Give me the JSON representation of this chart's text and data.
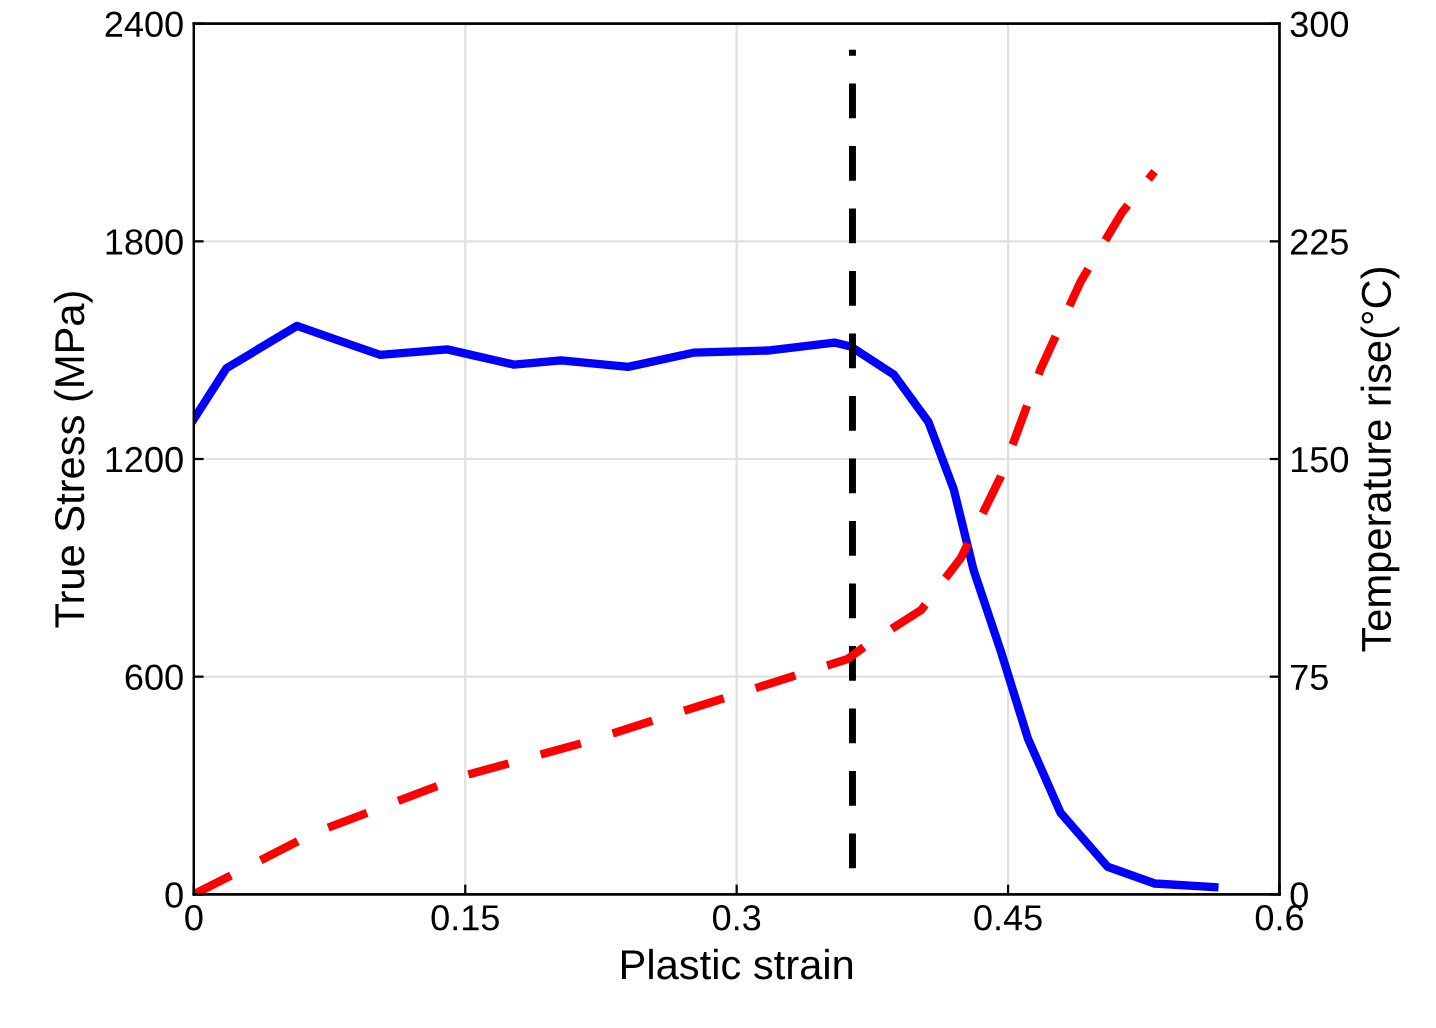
{
  "chart_data": {
    "type": "line",
    "xlabel": "Plastic strain",
    "ylabel": "True Stress (MPa)",
    "y2label": "Temperature rise(°C)",
    "xlim": [
      0,
      0.6
    ],
    "xticks": [
      0,
      0.15,
      0.3,
      0.45,
      0.6
    ],
    "ylim": [
      0,
      2400
    ],
    "yticks": [
      0,
      600,
      1200,
      1800,
      2400
    ],
    "y2lim": [
      0,
      300
    ],
    "y2ticks": [
      0,
      75,
      150,
      225,
      300
    ],
    "grid": true,
    "legend": false,
    "marker": "none",
    "series": [
      {
        "color": "#0000ff",
        "line_style": "solid",
        "x": [
          0,
          0.018,
          0.057,
          0.081,
          0.103,
          0.14,
          0.177,
          0.203,
          0.24,
          0.276,
          0.317,
          0.354,
          0.363,
          0.387,
          0.406,
          0.42,
          0.431,
          0.446,
          0.461,
          0.479,
          0.505,
          0.531,
          0.564
        ],
        "values": [
          1310,
          1450,
          1567,
          1525,
          1487,
          1502,
          1460,
          1472,
          1454,
          1493,
          1499,
          1521,
          1510,
          1432,
          1302,
          1116,
          893,
          670,
          429,
          225,
          76,
          30,
          20
        ]
      },
      {
        "color": "#ff0000",
        "line_style": "dashed",
        "axis": "y2",
        "x": [
          0,
          0.066,
          0.15,
          0.214,
          0.3,
          0.361,
          0.372,
          0.402,
          0.424,
          0.446,
          0.468,
          0.49,
          0.513,
          0.531
        ],
        "values": [
          0,
          21,
          41,
          52,
          69,
          81,
          86,
          98,
          116,
          144,
          181,
          211,
          235,
          249
        ]
      }
    ],
    "ref_lines": [
      {
        "axis": "x",
        "value": 0.364,
        "color": "#000000",
        "line_style": "dashed"
      }
    ]
  }
}
